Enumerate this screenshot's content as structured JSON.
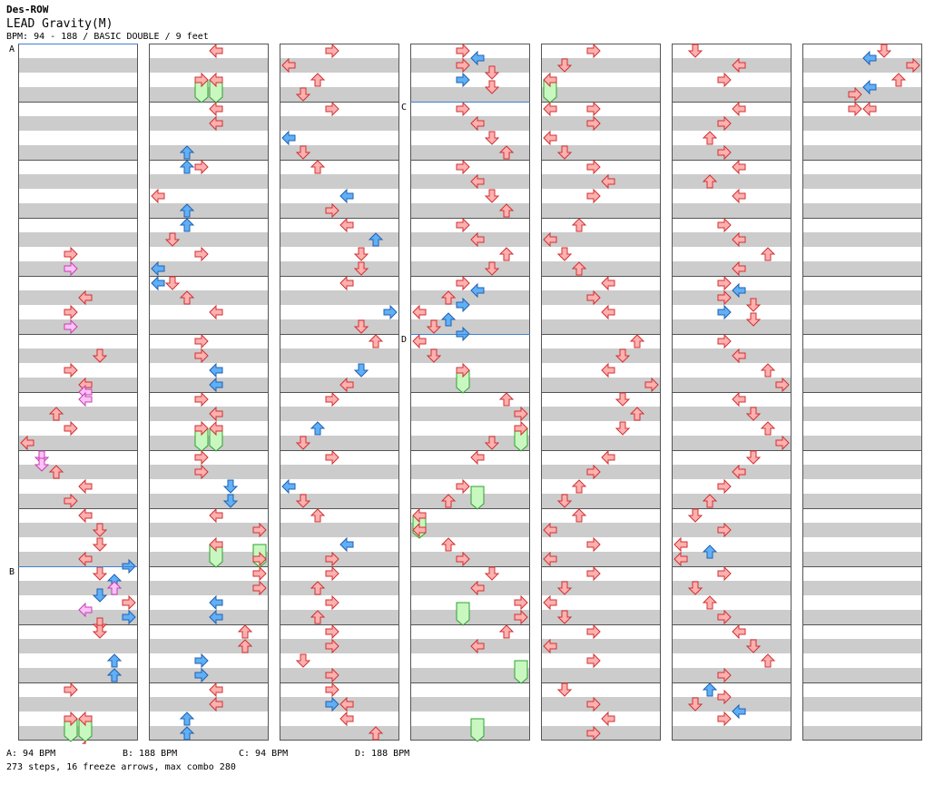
{
  "header": {
    "artist": "Des-ROW",
    "title": "LEAD Gravity(M)",
    "info": "BPM: 94 - 188 / BASIC DOUBLE / 9 feet"
  },
  "footer": {
    "bpm_a": "A: 94 BPM",
    "bpm_b": "B: 188 BPM",
    "bpm_c": "C: 94 BPM",
    "bpm_d": "D: 188 BPM",
    "stats": "273 steps, 16 freeze arrows, max combo 280"
  },
  "colors": {
    "red_arrow": "#ffb0b0",
    "red_stroke": "#d03030",
    "blue_arrow": "#60b0f8",
    "blue_stroke": "#2060b0",
    "pink_arrow": "#ffc0f8",
    "pink_stroke": "#c040b0",
    "freeze": "#c8f8c0",
    "freeze_stroke": "#30a030",
    "stripe": "#cccccc",
    "section_line": "#4080d0"
  },
  "sections": [
    {
      "label": "A",
      "column": 0,
      "row": 0
    },
    {
      "label": "B",
      "column": 0,
      "row": 36
    },
    {
      "label": "C",
      "column": 3,
      "row": 4
    },
    {
      "label": "D",
      "column": 3,
      "row": 20
    }
  ],
  "columns": [
    {
      "notes": [
        [
          14,
          3,
          "r"
        ],
        [
          15,
          3,
          "p"
        ],
        [
          17,
          4,
          "r"
        ],
        [
          18,
          3,
          "r"
        ],
        [
          19,
          3,
          "p"
        ],
        [
          21,
          5,
          "r"
        ],
        [
          22,
          3,
          "r"
        ],
        [
          23,
          4,
          "r"
        ],
        [
          23.5,
          4,
          "p"
        ],
        [
          24,
          4,
          "p"
        ],
        [
          25,
          2,
          "r"
        ],
        [
          26,
          3,
          "r"
        ],
        [
          27,
          0,
          "r"
        ],
        [
          28,
          1,
          "p"
        ],
        [
          28.5,
          1,
          "p"
        ],
        [
          29,
          2,
          "r"
        ],
        [
          30,
          4,
          "r"
        ],
        [
          31,
          3,
          "r"
        ],
        [
          32,
          4,
          "r"
        ],
        [
          33,
          5,
          "r"
        ],
        [
          34,
          5,
          "r"
        ],
        [
          35,
          4,
          "r"
        ],
        [
          35.5,
          7,
          "b"
        ],
        [
          36,
          5,
          "r"
        ],
        [
          36.5,
          6,
          "b"
        ],
        [
          37,
          6,
          "p"
        ],
        [
          37.5,
          5,
          "b"
        ],
        [
          38,
          7,
          "r"
        ],
        [
          38.5,
          4,
          "p"
        ],
        [
          39,
          7,
          "b"
        ],
        [
          39.5,
          5,
          "r"
        ],
        [
          40,
          5,
          "r"
        ],
        [
          42,
          6,
          "b"
        ],
        [
          43,
          6,
          "b"
        ],
        [
          44,
          3,
          "r"
        ],
        [
          46,
          3,
          "r"
        ],
        [
          46,
          4,
          "r"
        ],
        [
          48,
          4,
          "r"
        ],
        [
          49,
          4,
          "r"
        ],
        [
          50,
          1,
          "b"
        ],
        [
          51,
          1,
          "b"
        ]
      ],
      "freezes": [
        [
          46,
          47,
          3
        ],
        [
          46,
          47,
          4
        ]
      ]
    },
    {
      "notes": [
        [
          0,
          4,
          "r"
        ],
        [
          2,
          3,
          "r"
        ],
        [
          2,
          4,
          "r"
        ],
        [
          4,
          4,
          "r"
        ],
        [
          5,
          4,
          "r"
        ],
        [
          7,
          2,
          "b"
        ],
        [
          8,
          2,
          "b"
        ],
        [
          8,
          3,
          "r"
        ],
        [
          10,
          0,
          "r"
        ],
        [
          11,
          2,
          "b"
        ],
        [
          12,
          2,
          "b"
        ],
        [
          13,
          1,
          "r"
        ],
        [
          14,
          3,
          "r"
        ],
        [
          15,
          0,
          "b"
        ],
        [
          16,
          0,
          "b"
        ],
        [
          16,
          1,
          "r"
        ],
        [
          17,
          2,
          "r"
        ],
        [
          18,
          4,
          "r"
        ],
        [
          20,
          3,
          "r"
        ],
        [
          21,
          3,
          "r"
        ],
        [
          22,
          4,
          "b"
        ],
        [
          23,
          4,
          "b"
        ],
        [
          24,
          3,
          "r"
        ],
        [
          25,
          4,
          "r"
        ],
        [
          26,
          3,
          "r"
        ],
        [
          26,
          4,
          "r"
        ],
        [
          28,
          3,
          "r"
        ],
        [
          29,
          3,
          "r"
        ],
        [
          30,
          5,
          "b"
        ],
        [
          31,
          5,
          "b"
        ],
        [
          32,
          4,
          "r"
        ],
        [
          33,
          7,
          "r"
        ],
        [
          34,
          4,
          "r"
        ],
        [
          35,
          7,
          "r"
        ],
        [
          36,
          7,
          "r"
        ],
        [
          37,
          7,
          "r"
        ],
        [
          38,
          4,
          "b"
        ],
        [
          39,
          4,
          "b"
        ],
        [
          40,
          6,
          "r"
        ],
        [
          41,
          6,
          "r"
        ],
        [
          42,
          3,
          "b"
        ],
        [
          43,
          3,
          "b"
        ],
        [
          44,
          4,
          "r"
        ],
        [
          45,
          4,
          "r"
        ],
        [
          46,
          2,
          "b"
        ],
        [
          47,
          2,
          "b"
        ]
      ],
      "freezes": [
        [
          2,
          3,
          3
        ],
        [
          2,
          3,
          4
        ],
        [
          26,
          27,
          3
        ],
        [
          26,
          27,
          4
        ],
        [
          34,
          35,
          4
        ],
        [
          34,
          35,
          7
        ]
      ]
    },
    {
      "notes": [
        [
          0,
          3,
          "r"
        ],
        [
          1,
          0,
          "r"
        ],
        [
          2,
          2,
          "r"
        ],
        [
          3,
          1,
          "r"
        ],
        [
          4,
          3,
          "r"
        ],
        [
          6,
          0,
          "b"
        ],
        [
          7,
          1,
          "r"
        ],
        [
          8,
          2,
          "r"
        ],
        [
          10,
          4,
          "b"
        ],
        [
          11,
          3,
          "r"
        ],
        [
          12,
          4,
          "r"
        ],
        [
          13,
          6,
          "b"
        ],
        [
          14,
          5,
          "r"
        ],
        [
          15,
          5,
          "r"
        ],
        [
          16,
          4,
          "r"
        ],
        [
          18,
          7,
          "b"
        ],
        [
          19,
          5,
          "r"
        ],
        [
          20,
          6,
          "r"
        ],
        [
          22,
          5,
          "b"
        ],
        [
          23,
          4,
          "r"
        ],
        [
          24,
          3,
          "r"
        ],
        [
          26,
          2,
          "b"
        ],
        [
          27,
          1,
          "r"
        ],
        [
          28,
          3,
          "r"
        ],
        [
          30,
          0,
          "b"
        ],
        [
          31,
          1,
          "r"
        ],
        [
          32,
          2,
          "r"
        ],
        [
          34,
          4,
          "b"
        ],
        [
          35,
          3,
          "r"
        ],
        [
          36,
          3,
          "r"
        ],
        [
          37,
          2,
          "r"
        ],
        [
          38,
          3,
          "r"
        ],
        [
          39,
          2,
          "r"
        ],
        [
          40,
          3,
          "r"
        ],
        [
          41,
          3,
          "r"
        ],
        [
          42,
          1,
          "r"
        ],
        [
          43,
          3,
          "r"
        ],
        [
          44,
          3,
          "r"
        ],
        [
          45,
          3,
          "b"
        ],
        [
          45,
          4,
          "r"
        ],
        [
          46,
          4,
          "r"
        ],
        [
          47,
          6,
          "r"
        ]
      ],
      "freezes": []
    },
    {
      "notes": [
        [
          0,
          3,
          "r"
        ],
        [
          0.5,
          4,
          "b"
        ],
        [
          1,
          3,
          "r"
        ],
        [
          1.5,
          5,
          "r"
        ],
        [
          2,
          3,
          "b"
        ],
        [
          2.5,
          5,
          "r"
        ],
        [
          4,
          3,
          "r"
        ],
        [
          5,
          4,
          "r"
        ],
        [
          6,
          5,
          "r"
        ],
        [
          7,
          6,
          "r"
        ],
        [
          8,
          3,
          "r"
        ],
        [
          9,
          4,
          "r"
        ],
        [
          10,
          5,
          "r"
        ],
        [
          11,
          6,
          "r"
        ],
        [
          12,
          3,
          "r"
        ],
        [
          13,
          4,
          "r"
        ],
        [
          14,
          6,
          "r"
        ],
        [
          15,
          5,
          "r"
        ],
        [
          16,
          3,
          "r"
        ],
        [
          16.5,
          4,
          "b"
        ],
        [
          17,
          2,
          "r"
        ],
        [
          17.5,
          3,
          "b"
        ],
        [
          18,
          0,
          "r"
        ],
        [
          18.5,
          2,
          "b"
        ],
        [
          19,
          1,
          "r"
        ],
        [
          19.5,
          3,
          "b"
        ],
        [
          20,
          0,
          "r"
        ],
        [
          21,
          1,
          "r"
        ],
        [
          22,
          3,
          "r"
        ],
        [
          24,
          6,
          "r"
        ],
        [
          25,
          7,
          "r"
        ],
        [
          26,
          7,
          "r"
        ],
        [
          27,
          5,
          "r"
        ],
        [
          28,
          4,
          "r"
        ],
        [
          30,
          3,
          "r"
        ],
        [
          31,
          2,
          "r"
        ],
        [
          32,
          0,
          "r"
        ],
        [
          33,
          0,
          "r"
        ],
        [
          34,
          2,
          "r"
        ],
        [
          35,
          3,
          "r"
        ],
        [
          36,
          5,
          "r"
        ],
        [
          37,
          4,
          "r"
        ],
        [
          38,
          7,
          "r"
        ],
        [
          39,
          7,
          "r"
        ],
        [
          40,
          6,
          "r"
        ],
        [
          41,
          4,
          "r"
        ]
      ],
      "freezes": [
        [
          22,
          23,
          3
        ],
        [
          26,
          27,
          7
        ],
        [
          30,
          31,
          4
        ],
        [
          32,
          33,
          0
        ],
        [
          38,
          39,
          3
        ],
        [
          42,
          43,
          7
        ],
        [
          46,
          47,
          4
        ]
      ]
    },
    {
      "notes": [
        [
          0,
          3,
          "r"
        ],
        [
          1,
          1,
          "r"
        ],
        [
          2,
          0,
          "r"
        ],
        [
          4,
          0,
          "r"
        ],
        [
          4,
          3,
          "r"
        ],
        [
          5,
          3,
          "r"
        ],
        [
          6,
          0,
          "r"
        ],
        [
          7,
          1,
          "r"
        ],
        [
          8,
          3,
          "r"
        ],
        [
          9,
          4,
          "r"
        ],
        [
          10,
          3,
          "r"
        ],
        [
          12,
          2,
          "r"
        ],
        [
          13,
          0,
          "r"
        ],
        [
          14,
          1,
          "r"
        ],
        [
          15,
          2,
          "r"
        ],
        [
          16,
          4,
          "r"
        ],
        [
          17,
          3,
          "r"
        ],
        [
          18,
          4,
          "r"
        ],
        [
          20,
          6,
          "r"
        ],
        [
          21,
          5,
          "r"
        ],
        [
          22,
          4,
          "r"
        ],
        [
          23,
          7,
          "r"
        ],
        [
          24,
          5,
          "r"
        ],
        [
          25,
          6,
          "r"
        ],
        [
          26,
          5,
          "r"
        ],
        [
          28,
          4,
          "r"
        ],
        [
          29,
          3,
          "r"
        ],
        [
          30,
          2,
          "r"
        ],
        [
          31,
          1,
          "r"
        ],
        [
          32,
          2,
          "r"
        ],
        [
          33,
          0,
          "r"
        ],
        [
          34,
          3,
          "r"
        ],
        [
          35,
          0,
          "r"
        ],
        [
          36,
          3,
          "r"
        ],
        [
          37,
          1,
          "r"
        ],
        [
          38,
          0,
          "r"
        ],
        [
          39,
          1,
          "r"
        ],
        [
          40,
          3,
          "r"
        ],
        [
          41,
          0,
          "r"
        ],
        [
          42,
          3,
          "r"
        ],
        [
          44,
          1,
          "r"
        ],
        [
          45,
          3,
          "r"
        ],
        [
          46,
          4,
          "r"
        ],
        [
          47,
          3,
          "r"
        ]
      ],
      "freezes": [
        [
          2,
          3,
          0
        ]
      ]
    },
    {
      "notes": [
        [
          0,
          1,
          "r"
        ],
        [
          1,
          4,
          "r"
        ],
        [
          2,
          3,
          "r"
        ],
        [
          4,
          4,
          "r"
        ],
        [
          5,
          3,
          "r"
        ],
        [
          6,
          2,
          "r"
        ],
        [
          7,
          3,
          "r"
        ],
        [
          8,
          4,
          "r"
        ],
        [
          9,
          2,
          "r"
        ],
        [
          10,
          4,
          "r"
        ],
        [
          12,
          3,
          "r"
        ],
        [
          13,
          4,
          "r"
        ],
        [
          14,
          6,
          "r"
        ],
        [
          15,
          4,
          "r"
        ],
        [
          16,
          3,
          "r"
        ],
        [
          16.5,
          4,
          "b"
        ],
        [
          17,
          3,
          "r"
        ],
        [
          17.5,
          5,
          "r"
        ],
        [
          18,
          3,
          "b"
        ],
        [
          18.5,
          5,
          "r"
        ],
        [
          20,
          3,
          "r"
        ],
        [
          21,
          4,
          "r"
        ],
        [
          22,
          6,
          "r"
        ],
        [
          23,
          7,
          "r"
        ],
        [
          24,
          4,
          "r"
        ],
        [
          25,
          5,
          "r"
        ],
        [
          26,
          6,
          "r"
        ],
        [
          27,
          7,
          "r"
        ],
        [
          28,
          5,
          "r"
        ],
        [
          29,
          4,
          "r"
        ],
        [
          30,
          3,
          "r"
        ],
        [
          31,
          2,
          "r"
        ],
        [
          32,
          1,
          "r"
        ],
        [
          33,
          3,
          "r"
        ],
        [
          34,
          0,
          "r"
        ],
        [
          34.5,
          2,
          "b"
        ],
        [
          35,
          0,
          "r"
        ],
        [
          36,
          3,
          "r"
        ],
        [
          37,
          1,
          "r"
        ],
        [
          38,
          2,
          "r"
        ],
        [
          39,
          3,
          "r"
        ],
        [
          40,
          4,
          "r"
        ],
        [
          41,
          5,
          "r"
        ],
        [
          42,
          6,
          "r"
        ],
        [
          43,
          3,
          "r"
        ],
        [
          44,
          2,
          "b"
        ],
        [
          44.5,
          3,
          "r"
        ],
        [
          45,
          1,
          "r"
        ],
        [
          45.5,
          4,
          "b"
        ],
        [
          46,
          3,
          "r"
        ]
      ],
      "freezes": []
    },
    {
      "notes": [
        [
          0,
          5,
          "r"
        ],
        [
          0.5,
          4,
          "b"
        ],
        [
          1,
          7,
          "r"
        ],
        [
          2,
          6,
          "r"
        ],
        [
          2.5,
          4,
          "b"
        ],
        [
          3,
          3,
          "r"
        ],
        [
          4,
          3,
          "r"
        ],
        [
          4,
          4,
          "r"
        ]
      ],
      "freezes": []
    }
  ]
}
